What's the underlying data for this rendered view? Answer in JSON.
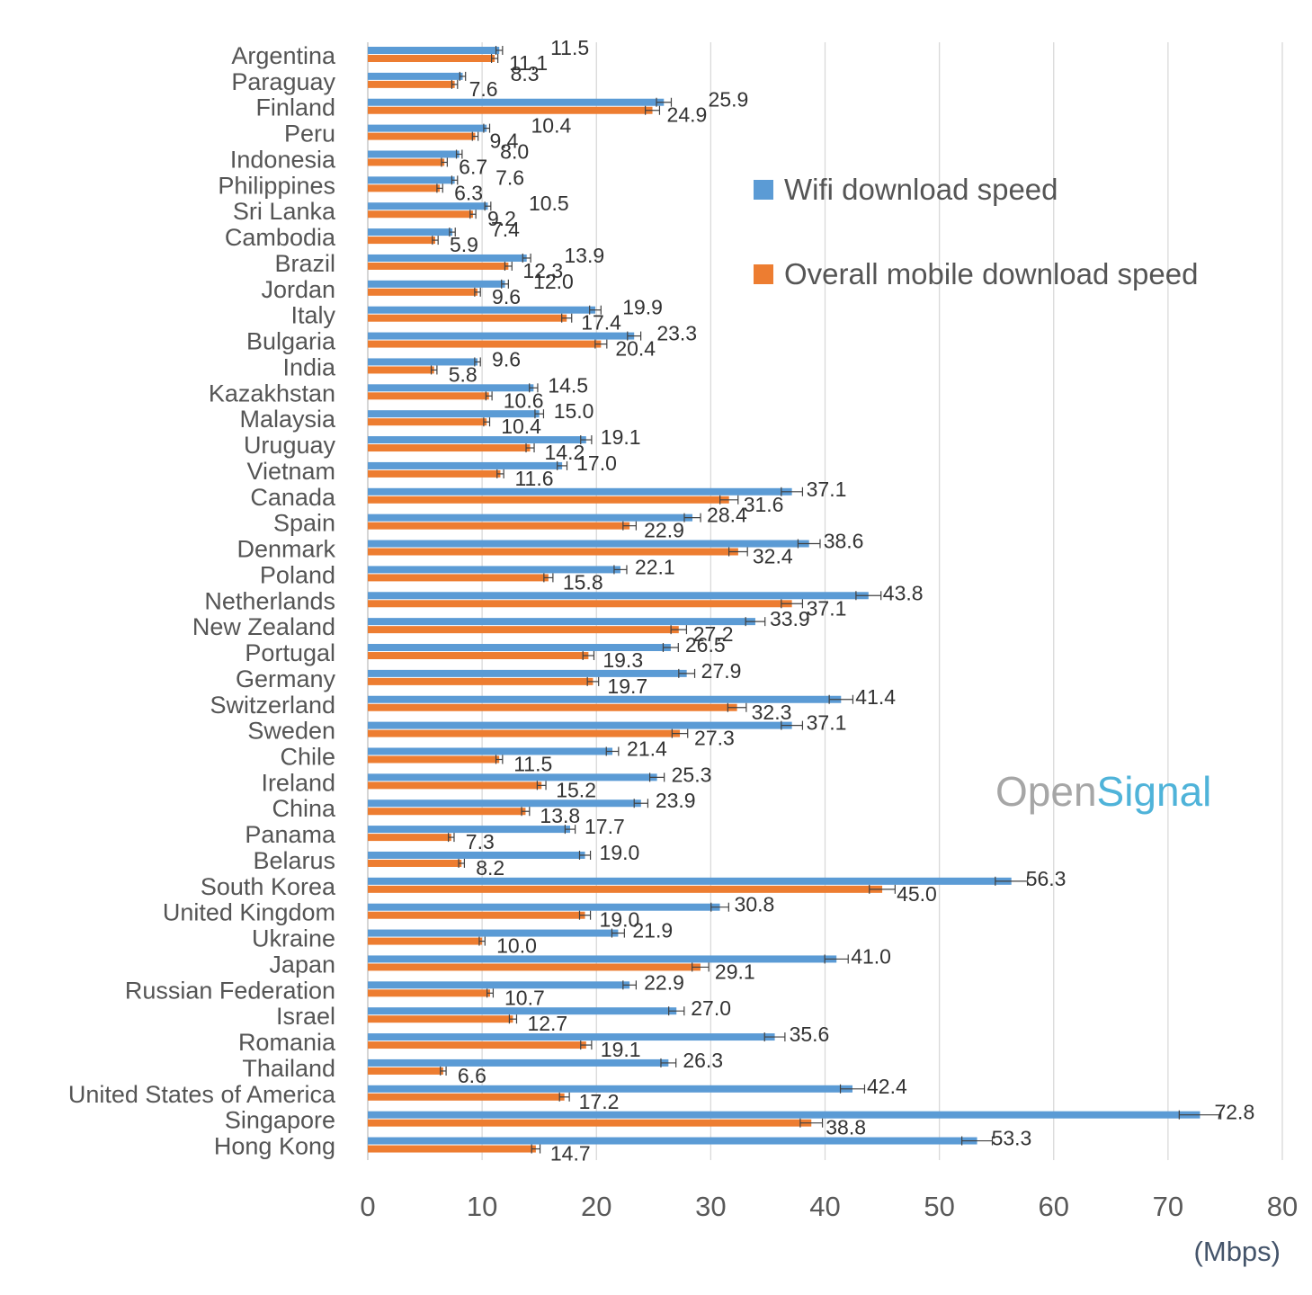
{
  "chart_data": {
    "type": "bar",
    "orientation": "horizontal",
    "categories": [
      "Argentina",
      "Paraguay",
      "Finland",
      "Peru",
      "Indonesia",
      "Philippines",
      "Sri Lanka",
      "Cambodia",
      "Brazil",
      "Jordan",
      "Italy",
      "Bulgaria",
      "India",
      "Kazakhstan",
      "Malaysia",
      "Uruguay",
      "Vietnam",
      "Canada",
      "Spain",
      "Denmark",
      "Poland",
      "Netherlands",
      "New Zealand",
      "Portugal",
      "Germany",
      "Switzerland",
      "Sweden",
      "Chile",
      "Ireland",
      "China",
      "Panama",
      "Belarus",
      "South Korea",
      "United Kingdom",
      "Ukraine",
      "Japan",
      "Russian Federation",
      "Israel",
      "Romania",
      "Thailand",
      "United States of America",
      "Singapore",
      "Hong Kong"
    ],
    "series": [
      {
        "name": "Wifi download speed",
        "color": "#5b9bd5",
        "values": [
          11.5,
          8.3,
          25.9,
          10.4,
          8.0,
          7.6,
          10.5,
          7.4,
          13.9,
          12.0,
          19.9,
          23.3,
          9.6,
          14.5,
          15.0,
          19.1,
          17.0,
          37.1,
          28.4,
          38.6,
          22.1,
          43.8,
          33.9,
          26.5,
          27.9,
          41.4,
          37.1,
          21.4,
          25.3,
          23.9,
          17.7,
          19.0,
          56.3,
          30.8,
          21.9,
          41.0,
          22.9,
          27.0,
          35.6,
          26.3,
          42.4,
          72.8,
          53.3
        ],
        "labels": [
          "11.5",
          "8.3",
          "25.9",
          "10.4",
          "8.0",
          "7.6",
          "10.5",
          "7.4",
          "13.9",
          "12.0",
          "19.9",
          "23.3",
          "9.6",
          "14.5",
          "15.0",
          "19.1",
          "17.0",
          "37.1",
          "28.4",
          "38.6",
          "22.1",
          "43.8",
          "33.9",
          "26.5",
          "27.9",
          "41.4",
          "37.1",
          "21.4",
          "25.3",
          "23.9",
          "17.7",
          "19.0",
          "56.3",
          "30.8",
          "21.9",
          "41.0",
          "22.9",
          "27.0",
          "35.6",
          "26.3",
          "42.4",
          "72.8",
          "53.3"
        ]
      },
      {
        "name": "Overall mobile download speed",
        "color": "#ed7d31",
        "values": [
          11.1,
          7.6,
          24.9,
          9.4,
          6.7,
          6.3,
          9.2,
          5.9,
          12.3,
          9.6,
          17.4,
          20.4,
          5.8,
          10.6,
          10.4,
          14.2,
          11.6,
          31.6,
          22.9,
          32.4,
          15.8,
          37.1,
          27.2,
          19.3,
          19.7,
          32.3,
          27.3,
          11.5,
          15.2,
          13.8,
          7.3,
          8.2,
          45.0,
          19.0,
          10.0,
          29.1,
          10.7,
          12.7,
          19.1,
          6.6,
          17.2,
          38.8,
          14.7
        ],
        "labels": [
          "11.1",
          "7.6",
          "24.9",
          "9.4",
          "6.7",
          "6.3",
          "9.2",
          "5.9",
          "12.3",
          "9.6",
          "17.4",
          "20.4",
          "5.8",
          "10.6",
          "10.4",
          "14.2",
          "11.6",
          "31.6",
          "22.9",
          "32.4",
          "15.8",
          "37.1",
          "27.2",
          "19.3",
          "19.7",
          "32.3",
          "27.3",
          "11.5",
          "15.2",
          "13.8",
          "7.3",
          "8.2",
          "45.0",
          "19.0",
          "10.0",
          "29.1",
          "10.7",
          "12.7",
          "19.1",
          "6.6",
          "17.2",
          "38.8",
          "14.7"
        ]
      }
    ],
    "xlim": [
      0,
      80
    ],
    "xticks": [
      "0",
      "10",
      "20",
      "30",
      "40",
      "50",
      "60",
      "70",
      "80"
    ],
    "xlabel": "(Mbps)",
    "grid": "vertical",
    "legend": "top-right",
    "error_bars": true
  },
  "branding": {
    "logo_part1": "Open",
    "logo_part2": "Signal",
    "logo_color1": "#a6a6a6",
    "logo_color2": "#4fb3d9"
  }
}
